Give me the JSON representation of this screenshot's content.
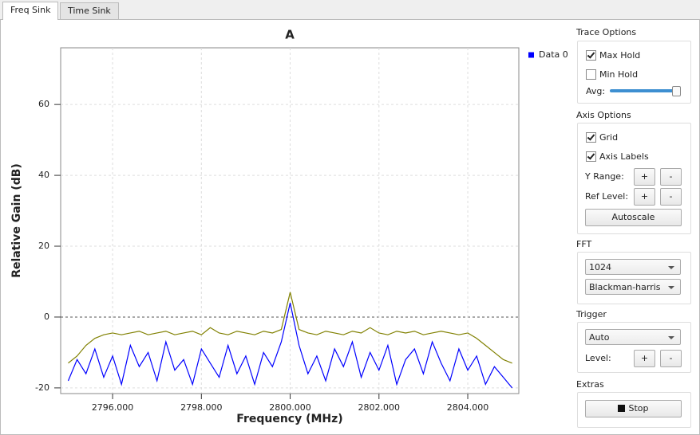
{
  "tabs": [
    {
      "label": "Freq Sink",
      "active": true
    },
    {
      "label": "Time Sink",
      "active": false
    }
  ],
  "chart_data": {
    "type": "line",
    "title": "A",
    "x_label": "Frequency (MHz)",
    "y_label": "Relative Gain (dB)",
    "x": [
      2795.0,
      2795.2,
      2795.4,
      2795.6,
      2795.8,
      2796.0,
      2796.2,
      2796.4,
      2796.6,
      2796.8,
      2797.0,
      2797.2,
      2797.4,
      2797.6,
      2797.8,
      2798.0,
      2798.2,
      2798.4,
      2798.6,
      2798.8,
      2799.0,
      2799.2,
      2799.4,
      2799.6,
      2799.8,
      2800.0,
      2800.2,
      2800.4,
      2800.6,
      2800.8,
      2801.0,
      2801.2,
      2801.4,
      2801.6,
      2801.8,
      2802.0,
      2802.2,
      2802.4,
      2802.6,
      2802.8,
      2803.0,
      2803.2,
      2803.4,
      2803.6,
      2803.8,
      2804.0,
      2804.2,
      2804.4,
      2804.6,
      2804.8,
      2805.0
    ],
    "series": [
      {
        "name": "Data 0",
        "color": "#0000ff",
        "values": [
          -18,
          -12,
          -16,
          -9,
          -17,
          -11,
          -19,
          -8,
          -14,
          -10,
          -18,
          -7,
          -15,
          -12,
          -19,
          -9,
          -13,
          -17,
          -8,
          -16,
          -11,
          -19,
          -10,
          -14,
          -7,
          4,
          -8,
          -16,
          -11,
          -18,
          -9,
          -14,
          -7,
          -17,
          -10,
          -15,
          -8,
          -19,
          -12,
          -9,
          -16,
          -7,
          -13,
          -18,
          -9,
          -15,
          -11,
          -19,
          -14,
          -17,
          -20
        ]
      },
      {
        "color": "#808000",
        "values": [
          -13,
          -11,
          -8,
          -6,
          -5,
          -4.5,
          -5,
          -4.5,
          -4,
          -5,
          -4.5,
          -4,
          -5,
          -4.5,
          -4,
          -5,
          -3,
          -4.5,
          -5,
          -4,
          -4.5,
          -5,
          -4,
          -4.5,
          -3.5,
          7,
          -3.5,
          -4.5,
          -5,
          -4,
          -4.5,
          -5,
          -4,
          -4.5,
          -3,
          -4.5,
          -5,
          -4,
          -4.5,
          -4,
          -5,
          -4.5,
          -4,
          -4.5,
          -5,
          -4.5,
          -6,
          -8,
          -10,
          -12,
          -13
        ]
      }
    ],
    "xlim": [
      2794.83,
      2805.15
    ],
    "ylim": [
      -21.6,
      76
    ],
    "xticks": [
      {
        "value": 2796,
        "label": "2796.000"
      },
      {
        "value": 2798,
        "label": "2798.000"
      },
      {
        "value": 2800,
        "label": "2800.000"
      },
      {
        "value": 2802,
        "label": "2802.000"
      },
      {
        "value": 2804,
        "label": "2804.000"
      }
    ],
    "yticks": [
      -20,
      0,
      20,
      40,
      60
    ],
    "grid": true,
    "legend": "right"
  },
  "controls": {
    "trace_options": {
      "title": "Trace Options",
      "max_hold": {
        "label": "Max Hold",
        "checked": true
      },
      "min_hold": {
        "label": "Min Hold",
        "checked": false
      },
      "avg": "Avg:"
    },
    "axis_options": {
      "title": "Axis Options",
      "grid": {
        "label": "Grid",
        "checked": true
      },
      "axis_labels": {
        "label": "Axis Labels",
        "checked": true
      },
      "y_range": {
        "label": "Y Range:",
        "plus": "+",
        "minus": "-"
      },
      "ref_level": {
        "label": "Ref Level:",
        "plus": "+",
        "minus": "-"
      },
      "autoscale": "Autoscale"
    },
    "fft": {
      "title": "FFT",
      "size": 1024,
      "window": "Blackman-harris"
    },
    "trigger": {
      "title": "Trigger",
      "mode": "Auto",
      "level": {
        "label": "Level:",
        "plus": "+",
        "minus": "-"
      }
    },
    "extras": {
      "title": "Extras",
      "stop": "Stop"
    }
  }
}
